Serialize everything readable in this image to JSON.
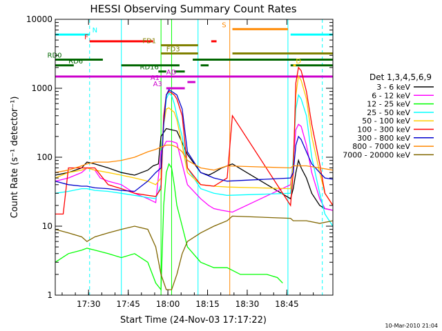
{
  "chart_data": {
    "type": "line",
    "title": "HESSI Observing Summary Count Rates",
    "xlabel": "Start Time (24-Nov-03 17:17:22)",
    "ylabel": "Count Rate (s⁻¹ detector⁻¹)",
    "xunit": "minutes after 17:17:22",
    "xlim": [
      0,
      105
    ],
    "ylim": [
      1,
      10000
    ],
    "yscale": "log",
    "x_ticks": [
      {
        "label": "17:30",
        "x": 12.6
      },
      {
        "label": "17:45",
        "x": 27.6
      },
      {
        "label": "18:00",
        "x": 42.6
      },
      {
        "label": "18:15",
        "x": 57.6
      },
      {
        "label": "18:30",
        "x": 72.6
      },
      {
        "label": "18:45",
        "x": 87.6
      }
    ],
    "y_ticks": [
      {
        "label": "1",
        "y": 1
      },
      {
        "label": "10",
        "y": 10
      },
      {
        "label": "100",
        "y": 100
      },
      {
        "label": "1000",
        "y": 1000
      },
      {
        "label": "10000",
        "y": 10000
      }
    ],
    "legend_title": "Det 1,3,4,5,6,9",
    "legend_position": "right",
    "series": [
      {
        "name": "3 - 6 keV",
        "color": "#000000",
        "x": [
          0,
          5,
          10,
          12,
          15,
          20,
          25,
          30,
          35,
          37,
          39,
          40,
          42,
          44,
          46,
          50,
          55,
          58,
          60,
          63,
          67,
          89,
          90,
          91,
          92,
          93,
          95,
          97,
          100,
          102,
          105
        ],
        "y": [
          55,
          60,
          70,
          85,
          80,
          70,
          60,
          55,
          65,
          75,
          80,
          200,
          260,
          250,
          240,
          110,
          60,
          55,
          60,
          70,
          80,
          25,
          35,
          60,
          90,
          70,
          50,
          30,
          20,
          18,
          17
        ]
      },
      {
        "name": "6 - 12 keV",
        "color": "#ff00ff",
        "x": [
          0,
          5,
          10,
          12,
          15,
          17,
          20,
          25,
          30,
          35,
          38,
          40,
          42,
          44,
          46,
          50,
          55,
          58,
          60,
          63,
          67,
          89,
          90,
          91,
          92,
          93,
          95,
          97,
          100,
          102,
          105
        ],
        "y": [
          45,
          50,
          60,
          70,
          65,
          50,
          45,
          40,
          30,
          25,
          22,
          120,
          170,
          170,
          160,
          40,
          25,
          20,
          18,
          17,
          16,
          40,
          90,
          250,
          300,
          280,
          150,
          60,
          25,
          18,
          17
        ]
      },
      {
        "name": "12 - 25 keV",
        "color": "#00ff00",
        "x": [
          0,
          5,
          10,
          12,
          15,
          20,
          25,
          30,
          35,
          38,
          40,
          41,
          42,
          43,
          44,
          45,
          46,
          48,
          50,
          55,
          60,
          65,
          70,
          75,
          80,
          84,
          86
        ],
        "y": [
          3,
          4,
          4.5,
          4.8,
          4.5,
          4,
          3.5,
          4,
          3,
          1.5,
          1.2,
          20,
          60,
          80,
          70,
          40,
          20,
          10,
          5,
          3,
          2.5,
          2.5,
          2,
          2,
          2,
          1.8,
          1.5
        ]
      },
      {
        "name": "25 - 50 keV",
        "color": "#00ffff",
        "x": [
          0,
          5,
          10,
          12,
          15,
          20,
          25,
          30,
          35,
          38,
          40,
          41,
          42,
          43,
          44,
          45,
          46,
          48,
          50,
          55,
          60,
          65,
          89,
          90,
          91,
          92,
          93,
          95,
          97,
          100,
          102,
          105
        ],
        "y": [
          30,
          32,
          35,
          35,
          33,
          32,
          30,
          28,
          26,
          25,
          40,
          300,
          700,
          850,
          780,
          600,
          400,
          200,
          70,
          35,
          30,
          28,
          30,
          100,
          500,
          800,
          700,
          400,
          100,
          30,
          15,
          10
        ]
      },
      {
        "name": "50 - 100 keV",
        "color": "#ffcc00",
        "x": [
          0,
          5,
          10,
          12,
          15,
          20,
          25,
          30,
          35,
          38,
          40,
          41,
          42,
          43,
          44,
          45,
          46,
          48,
          50,
          55,
          60,
          65,
          89,
          90,
          91,
          92,
          93,
          95,
          97,
          100,
          102,
          105
        ],
        "y": [
          50,
          60,
          65,
          70,
          65,
          60,
          55,
          50,
          45,
          40,
          50,
          300,
          500,
          520,
          480,
          450,
          350,
          150,
          60,
          40,
          38,
          37,
          35,
          80,
          800,
          1500,
          1300,
          700,
          200,
          60,
          30,
          20
        ]
      },
      {
        "name": "100 - 300 keV",
        "color": "#ff0000",
        "x": [
          0,
          3,
          5,
          10,
          12,
          15,
          20,
          25,
          30,
          35,
          38,
          40,
          41,
          42,
          43,
          44,
          45,
          46,
          48,
          50,
          55,
          60,
          65,
          67,
          89,
          90,
          91,
          92,
          93,
          95,
          97,
          100,
          102,
          105
        ],
        "y": [
          15,
          15,
          70,
          70,
          70,
          70,
          40,
          35,
          30,
          28,
          27,
          35,
          400,
          800,
          900,
          850,
          800,
          700,
          400,
          70,
          40,
          38,
          50,
          400,
          20,
          60,
          1200,
          2000,
          1800,
          900,
          300,
          80,
          30,
          20
        ]
      },
      {
        "name": "300 - 800 keV",
        "color": "#0000cc",
        "x": [
          0,
          5,
          10,
          12,
          15,
          20,
          25,
          30,
          35,
          38,
          40,
          41,
          42,
          43,
          44,
          45,
          46,
          48,
          50,
          55,
          60,
          65,
          89,
          90,
          91,
          92,
          93,
          95,
          97,
          100,
          102,
          105
        ],
        "y": [
          45,
          40,
          38,
          38,
          36,
          35,
          33,
          32,
          45,
          60,
          70,
          300,
          800,
          950,
          900,
          850,
          800,
          500,
          120,
          60,
          50,
          45,
          50,
          60,
          150,
          200,
          180,
          120,
          80,
          60,
          50,
          48
        ]
      },
      {
        "name": "800 - 7000 keV",
        "color": "#ff8800",
        "x": [
          0,
          5,
          10,
          12,
          15,
          20,
          25,
          30,
          35,
          38,
          40,
          42,
          44,
          46,
          48,
          50,
          55,
          60,
          65,
          89,
          90,
          95,
          100,
          105
        ],
        "y": [
          60,
          65,
          75,
          80,
          85,
          85,
          90,
          100,
          120,
          130,
          140,
          150,
          150,
          140,
          120,
          90,
          70,
          65,
          75,
          70,
          75,
          75,
          70,
          65
        ]
      },
      {
        "name": "7000 - 20000 keV",
        "color": "#806600",
        "x": [
          0,
          5,
          10,
          12,
          15,
          20,
          25,
          30,
          35,
          38,
          40,
          42,
          44,
          46,
          48,
          50,
          55,
          60,
          65,
          67,
          89,
          90,
          95,
          100,
          105
        ],
        "y": [
          9,
          8,
          7,
          6,
          7,
          8,
          9,
          10,
          9,
          5,
          2,
          1.2,
          1.2,
          2,
          4,
          6,
          8,
          10,
          12,
          14,
          13,
          12,
          12,
          11,
          12
        ]
      }
    ],
    "bars": [
      {
        "label": "N",
        "color": "#00ffff",
        "y": 6000,
        "segments": [
          [
            0,
            13
          ],
          [
            89,
            105
          ]
        ],
        "label_x": 14
      },
      {
        "label": "F",
        "color": "#ff0000",
        "y": 4800,
        "segments": [
          [
            13,
            37
          ],
          [
            59,
            61
          ]
        ],
        "label_x": 11
      },
      {
        "label": "FD1",
        "color": "#808000",
        "y": 4200,
        "segments": [
          [
            40,
            54
          ]
        ],
        "label_x": 33
      },
      {
        "label": "FD3",
        "color": "#808000",
        "y": 3200,
        "segments": [
          [
            40,
            54
          ],
          [
            67,
            105
          ]
        ],
        "label_x": 42
      },
      {
        "label": "S",
        "color": "#ff8800",
        "y": 7200,
        "segments": [
          [
            67,
            88
          ]
        ],
        "label_x": 63
      },
      {
        "label": "RD0",
        "color": "#006600",
        "y": 2600,
        "segments": [
          [
            0,
            18
          ],
          [
            52,
            105
          ]
        ],
        "label_x": -3
      },
      {
        "label": "RD6",
        "color": "#006600",
        "y": 2150,
        "segments": [
          [
            0,
            7
          ],
          [
            25,
            47
          ],
          [
            55,
            58
          ],
          [
            89,
            105
          ]
        ],
        "label_x": 5
      },
      {
        "label": "RD16",
        "color": "#006600",
        "y": 1750,
        "segments": [
          [
            39,
            42
          ],
          [
            45,
            49
          ]
        ],
        "label_x": 32
      },
      {
        "label": "D",
        "color": "#ffcc00",
        "y": 2150,
        "segments": [
          [
            90,
            91
          ]
        ],
        "label_x": 91
      },
      {
        "label": "AD",
        "color": "#cc00cc",
        "y": 1480,
        "segments": [
          [
            0,
            105
          ]
        ],
        "label_x": 42
      },
      {
        "label": "A1",
        "color": "#cc00cc",
        "y": 1230,
        "segments": [
          [
            50,
            53
          ]
        ],
        "label_x": 36
      },
      {
        "label": "A3",
        "color": "#cc00cc",
        "y": 1000,
        "segments": [
          [
            42,
            49
          ]
        ],
        "label_x": 37
      }
    ],
    "vlines": [
      {
        "x": 0,
        "color": "#00ffff",
        "style": "solid"
      },
      {
        "x": 13,
        "color": "#00ffff",
        "style": "dashed"
      },
      {
        "x": 25,
        "color": "#00ffff",
        "style": "solid"
      },
      {
        "x": 40,
        "color": "#00ff00",
        "style": "solid"
      },
      {
        "x": 44,
        "color": "#00ff00",
        "style": "solid"
      },
      {
        "x": 54,
        "color": "#00ffff",
        "style": "solid"
      },
      {
        "x": 66,
        "color": "#ff8800",
        "style": "solid"
      },
      {
        "x": 88,
        "color": "#00ffff",
        "style": "solid"
      },
      {
        "x": 101,
        "color": "#00ffff",
        "style": "dashed"
      }
    ],
    "footer": "10-Mar-2010 21:04"
  }
}
